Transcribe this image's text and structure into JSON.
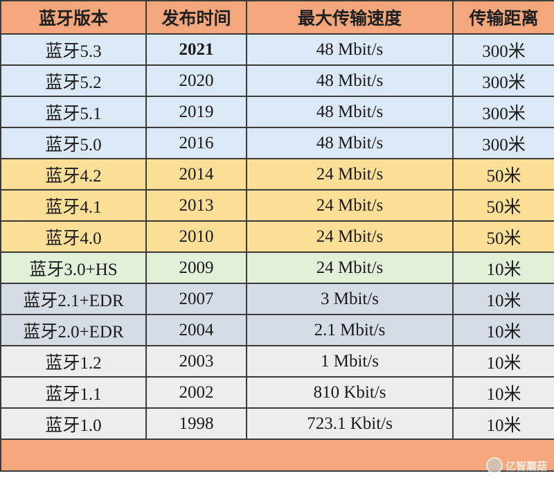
{
  "headers": [
    "蓝牙版本",
    "发布时间",
    "最大传输速度",
    "传输距离"
  ],
  "rows": [
    {
      "version": "蓝牙5.3",
      "year": "2021",
      "speed": "48 Mbit/s",
      "range": "300米",
      "group": "blue",
      "bold_year": true
    },
    {
      "version": "蓝牙5.2",
      "year": "2020",
      "speed": "48 Mbit/s",
      "range": "300米",
      "group": "blue"
    },
    {
      "version": "蓝牙5.1",
      "year": "2019",
      "speed": "48 Mbit/s",
      "range": "300米",
      "group": "blue"
    },
    {
      "version": "蓝牙5.0",
      "year": "2016",
      "speed": "48 Mbit/s",
      "range": "300米",
      "group": "blue"
    },
    {
      "version": "蓝牙4.2",
      "year": "2014",
      "speed": "24 Mbit/s",
      "range": "50米",
      "group": "yellow"
    },
    {
      "version": "蓝牙4.1",
      "year": "2013",
      "speed": "24 Mbit/s",
      "range": "50米",
      "group": "yellow"
    },
    {
      "version": "蓝牙4.0",
      "year": "2010",
      "speed": "24 Mbit/s",
      "range": "50米",
      "group": "yellow"
    },
    {
      "version": "蓝牙3.0+HS",
      "year": "2009",
      "speed": "24 Mbit/s",
      "range": "10米",
      "group": "green"
    },
    {
      "version": "蓝牙2.1+EDR",
      "year": "2007",
      "speed": "3 Mbit/s",
      "range": "10米",
      "group": "gray"
    },
    {
      "version": "蓝牙2.0+EDR",
      "year": "2004",
      "speed": "2.1 Mbit/s",
      "range": "10米",
      "group": "gray"
    },
    {
      "version": "蓝牙1.2",
      "year": "2003",
      "speed": "1 Mbit/s",
      "range": "10米",
      "group": "light"
    },
    {
      "version": "蓝牙1.1",
      "year": "2002",
      "speed": "810 Kbit/s",
      "range": "10米",
      "group": "light"
    },
    {
      "version": "蓝牙1.0",
      "year": "1998",
      "speed": "723.1 Kbit/s",
      "range": "10米",
      "group": "light"
    }
  ],
  "watermark": {
    "text": "亿智蘑菇"
  },
  "colors": {
    "header": "#f4a77c",
    "blue": "#dbe8f6",
    "yellow": "#fcdf97",
    "green": "#e2efd9",
    "gray": "#d6dce5",
    "light": "#ededed",
    "border": "#3a3a3a"
  }
}
